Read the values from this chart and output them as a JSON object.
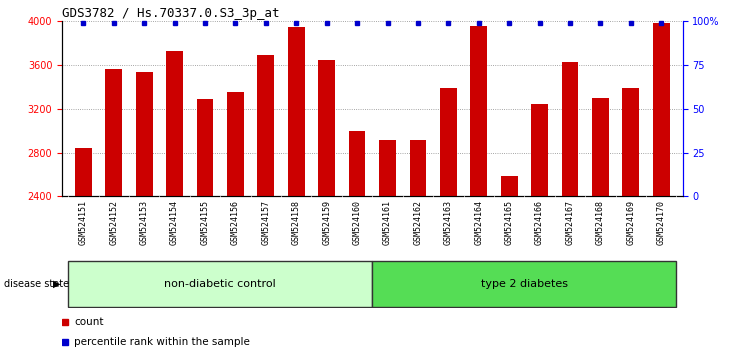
{
  "title": "GDS3782 / Hs.70337.0.S3_3p_at",
  "samples": [
    "GSM524151",
    "GSM524152",
    "GSM524153",
    "GSM524154",
    "GSM524155",
    "GSM524156",
    "GSM524157",
    "GSM524158",
    "GSM524159",
    "GSM524160",
    "GSM524161",
    "GSM524162",
    "GSM524163",
    "GSM524164",
    "GSM524165",
    "GSM524166",
    "GSM524167",
    "GSM524168",
    "GSM524169",
    "GSM524170"
  ],
  "counts": [
    2840,
    3560,
    3540,
    3730,
    3290,
    3350,
    3690,
    3950,
    3650,
    3000,
    2920,
    2920,
    3390,
    3960,
    2590,
    3240,
    3630,
    3300,
    3390,
    3980
  ],
  "ylim_left": [
    2400,
    4000
  ],
  "ylim_right": [
    0,
    100
  ],
  "yticks_left": [
    2400,
    2800,
    3200,
    3600,
    4000
  ],
  "yticks_right": [
    0,
    25,
    50,
    75,
    100
  ],
  "ytick_labels_right": [
    "0",
    "25",
    "50",
    "75",
    "100%"
  ],
  "bar_color": "#cc0000",
  "percentile_color": "#0000cc",
  "grid_color": "#888888",
  "non_diabetic_label": "non-diabetic control",
  "diabetes_label": "type 2 diabetes",
  "non_diabetic_color": "#ccffcc",
  "diabetes_color": "#55dd55",
  "disease_label": "disease state",
  "group_boundary": 10,
  "legend_count_label": "count",
  "legend_percentile_label": "percentile rank within the sample",
  "bar_width": 0.55,
  "tick_label_fontsize": 6.0,
  "title_fontsize": 9,
  "xtick_bg_color": "#cccccc",
  "non_diabetic_count": 10,
  "diabetes_count": 10
}
